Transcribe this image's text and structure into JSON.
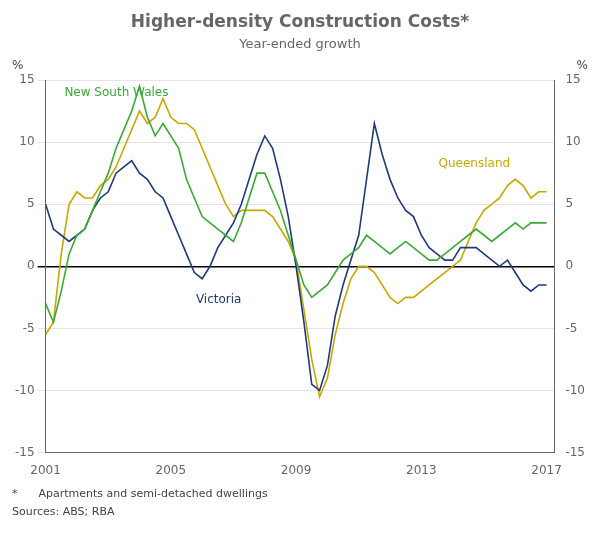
{
  "chart_data": {
    "type": "line",
    "title": "Higher-density Construction Costs*",
    "subtitle": "Year-ended growth",
    "ylabel": "%",
    "y2label": "%",
    "footnotes": [
      "*      Apartments and semi-detached dwellings",
      "Sources: ABS; RBA"
    ],
    "grid": true,
    "xlim": [
      2001.0,
      2017.25
    ],
    "xticks": [
      2001,
      2005,
      2009,
      2013,
      2017
    ],
    "ylim": [
      -15,
      15
    ],
    "yticks": [
      -15,
      -10,
      -5,
      0,
      5,
      10,
      15
    ],
    "y2lim": [
      -15,
      15
    ],
    "y2ticks": [
      -15,
      -10,
      -5,
      0,
      5,
      10,
      15
    ],
    "x": [
      2001.0,
      2001.25,
      2001.5,
      2001.75,
      2002.0,
      2002.25,
      2002.5,
      2002.75,
      2003.0,
      2003.25,
      2003.5,
      2003.75,
      2004.0,
      2004.25,
      2004.5,
      2004.75,
      2005.0,
      2005.25,
      2005.5,
      2005.75,
      2006.0,
      2006.25,
      2006.5,
      2006.75,
      2007.0,
      2007.25,
      2007.5,
      2007.75,
      2008.0,
      2008.25,
      2008.5,
      2008.75,
      2009.0,
      2009.25,
      2009.5,
      2009.75,
      2010.0,
      2010.25,
      2010.5,
      2010.75,
      2011.0,
      2011.25,
      2011.5,
      2011.75,
      2012.0,
      2012.25,
      2012.5,
      2012.75,
      2013.0,
      2013.25,
      2013.5,
      2013.75,
      2014.0,
      2014.25,
      2014.5,
      2014.75,
      2015.0,
      2015.25,
      2015.5,
      2015.75,
      2016.0,
      2016.25,
      2016.5,
      2016.75,
      2017.0
    ],
    "series": [
      {
        "name": "New South Wales",
        "color": "#3AAA35",
        "values": [
          -3.0,
          -4.5,
          -2.0,
          1.0,
          2.5,
          3.0,
          4.5,
          6.0,
          7.5,
          9.5,
          11.0,
          12.5,
          14.5,
          12.0,
          10.5,
          11.5,
          10.5,
          9.5,
          7.0,
          5.5,
          4.0,
          3.5,
          3.0,
          2.5,
          2.0,
          3.5,
          5.5,
          7.5,
          7.5,
          6.0,
          4.5,
          2.5,
          0.5,
          -1.5,
          -2.5,
          -2.0,
          -1.5,
          -0.5,
          0.5,
          1.0,
          1.5,
          2.5,
          2.0,
          1.5,
          1.0,
          1.5,
          2.0,
          1.5,
          1.0,
          0.5,
          0.5,
          1.0,
          1.5,
          2.0,
          2.5,
          3.0,
          2.5,
          2.0,
          2.5,
          3.0,
          3.5,
          3.0,
          3.5,
          3.5,
          3.5
        ]
      },
      {
        "name": "Victoria",
        "color": "#1F3A7D",
        "values": [
          5.0,
          3.0,
          2.5,
          2.0,
          2.5,
          3.0,
          4.5,
          5.5,
          6.0,
          7.5,
          8.0,
          8.5,
          7.5,
          7.0,
          6.0,
          5.5,
          4.0,
          2.5,
          1.0,
          -0.5,
          -1.0,
          0.0,
          1.5,
          2.5,
          3.5,
          5.0,
          7.0,
          9.0,
          10.5,
          9.5,
          7.0,
          4.0,
          0.0,
          -4.5,
          -9.5,
          -10.0,
          -8.0,
          -4.0,
          -1.5,
          0.5,
          2.5,
          7.0,
          11.5,
          9.0,
          7.0,
          5.5,
          4.5,
          4.0,
          2.5,
          1.5,
          1.0,
          0.5,
          0.5,
          1.5,
          1.5,
          1.5,
          1.0,
          0.5,
          0.0,
          0.5,
          -0.5,
          -1.5,
          -2.0,
          -1.5,
          -1.5
        ]
      },
      {
        "name": "Queensland",
        "color": "#C8A800",
        "values": [
          -5.5,
          -4.5,
          1.0,
          5.0,
          6.0,
          5.5,
          5.5,
          6.5,
          7.0,
          8.0,
          9.5,
          11.0,
          12.5,
          11.5,
          12.0,
          13.5,
          12.0,
          11.5,
          11.5,
          11.0,
          9.5,
          8.0,
          6.5,
          5.0,
          4.0,
          4.5,
          4.5,
          4.5,
          4.5,
          4.0,
          3.0,
          2.0,
          0.5,
          -3.5,
          -7.5,
          -10.5,
          -9.0,
          -5.5,
          -3.0,
          -1.0,
          0.0,
          0.0,
          -0.5,
          -1.5,
          -2.5,
          -3.0,
          -2.5,
          -2.5,
          -2.0,
          -1.5,
          -1.0,
          -0.5,
          0.0,
          0.5,
          2.0,
          3.5,
          4.5,
          5.0,
          5.5,
          6.5,
          7.0,
          6.5,
          5.5,
          6.0,
          6.0
        ]
      }
    ],
    "annotations": [
      {
        "text": "New South Wales",
        "x": 2001.6,
        "y": 13.5,
        "color": "#3AAA35"
      },
      {
        "text": "Queensland",
        "x": 2013.55,
        "y": 7.8,
        "color": "#C8A800"
      },
      {
        "text": "Victoria",
        "x": 2005.8,
        "y": -3.2,
        "color": "#1F3A7D"
      }
    ]
  }
}
